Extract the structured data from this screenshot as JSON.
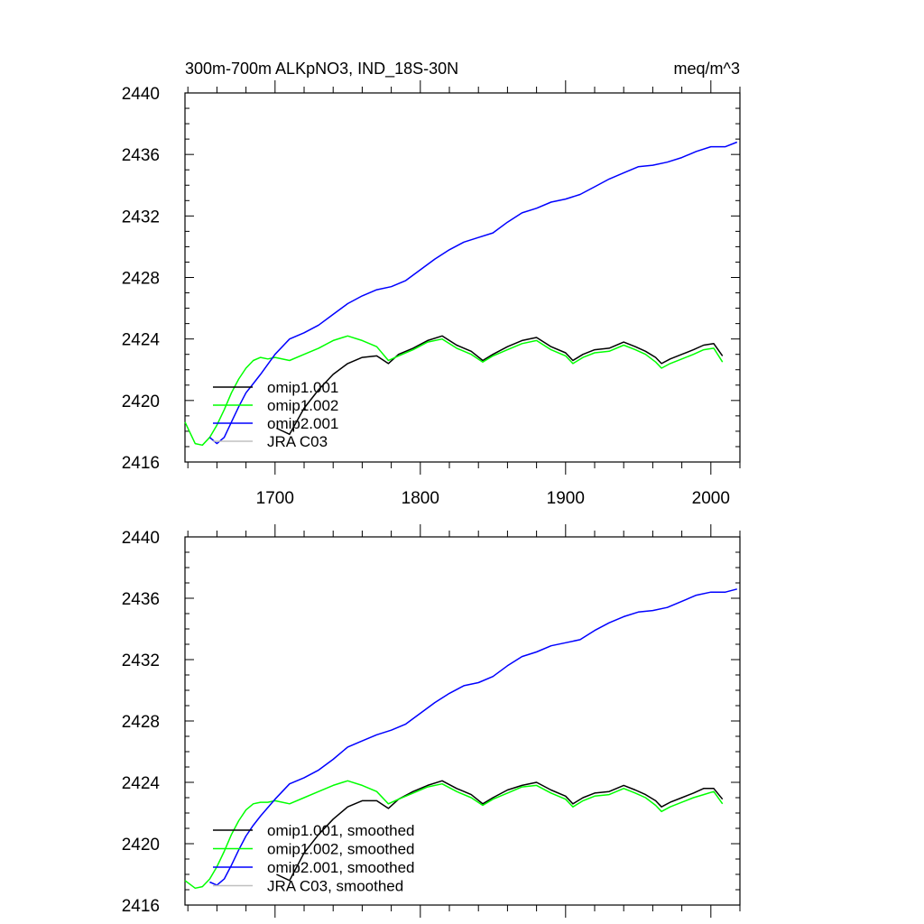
{
  "chart_data": [
    {
      "type": "line",
      "title": "300m-700m ALKpNO3, IND_18S-30N",
      "units": "meq/m^3",
      "ylim": [
        2416,
        2440
      ],
      "xlim": [
        1638,
        2020
      ],
      "yticks": [
        "2416",
        "2420",
        "2424",
        "2428",
        "2432",
        "2436",
        "2440"
      ],
      "xticks": [
        "1700",
        "1800",
        "1900",
        "2000"
      ],
      "legend_position": "bottom-left",
      "series": [
        {
          "name": "omip1.001",
          "color": "#000000",
          "x": [
            1701,
            1710,
            1720,
            1730,
            1740,
            1750,
            1760,
            1770,
            1778,
            1785,
            1795,
            1805,
            1815,
            1825,
            1835,
            1843,
            1850,
            1860,
            1870,
            1880,
            1890,
            1900,
            1905,
            1912,
            1920,
            1930,
            1940,
            1948,
            1955,
            1962,
            1966,
            1972,
            1980,
            1988,
            1995,
            2002,
            2008
          ],
          "y": [
            2418.2,
            2417.8,
            2419.5,
            2420.7,
            2421.7,
            2422.4,
            2422.8,
            2422.9,
            2422.4,
            2423.0,
            2423.4,
            2423.9,
            2424.2,
            2423.6,
            2423.2,
            2422.6,
            2423.0,
            2423.5,
            2423.9,
            2424.1,
            2423.5,
            2423.1,
            2422.6,
            2423.0,
            2423.3,
            2423.4,
            2423.8,
            2423.5,
            2423.2,
            2422.8,
            2422.4,
            2422.7,
            2423.0,
            2423.3,
            2423.6,
            2423.7,
            2422.9
          ]
        },
        {
          "name": "omip1.002",
          "color": "#00ff00",
          "x": [
            1638,
            1645,
            1650,
            1655,
            1660,
            1665,
            1670,
            1675,
            1680,
            1685,
            1690,
            1695,
            1700,
            1710,
            1720,
            1730,
            1740,
            1750,
            1760,
            1770,
            1778,
            1785,
            1795,
            1805,
            1815,
            1825,
            1835,
            1843,
            1850,
            1860,
            1870,
            1880,
            1890,
            1900,
            1905,
            1912,
            1920,
            1930,
            1940,
            1948,
            1955,
            1962,
            1966,
            1972,
            1980,
            1988,
            1995,
            2002,
            2008
          ],
          "y": [
            2418.6,
            2417.2,
            2417.1,
            2417.6,
            2418.4,
            2419.4,
            2420.5,
            2421.4,
            2422.1,
            2422.6,
            2422.8,
            2422.7,
            2422.8,
            2422.6,
            2423.0,
            2423.4,
            2423.9,
            2424.2,
            2423.9,
            2423.5,
            2422.6,
            2422.9,
            2423.3,
            2423.8,
            2424.0,
            2423.4,
            2423.0,
            2422.5,
            2422.9,
            2423.3,
            2423.7,
            2423.9,
            2423.3,
            2422.9,
            2422.4,
            2422.8,
            2423.1,
            2423.2,
            2423.6,
            2423.3,
            2423.0,
            2422.5,
            2422.1,
            2422.4,
            2422.7,
            2423.0,
            2423.3,
            2423.4,
            2422.5
          ]
        },
        {
          "name": "omip2.001",
          "color": "#0000ff",
          "x": [
            1655,
            1660,
            1665,
            1670,
            1675,
            1680,
            1685,
            1690,
            1700,
            1710,
            1720,
            1730,
            1740,
            1750,
            1760,
            1770,
            1780,
            1790,
            1800,
            1810,
            1820,
            1830,
            1840,
            1850,
            1860,
            1870,
            1880,
            1890,
            1900,
            1910,
            1920,
            1930,
            1940,
            1950,
            1960,
            1970,
            1980,
            1990,
            2000,
            2010,
            2018
          ],
          "y": [
            2417.6,
            2417.2,
            2417.6,
            2418.6,
            2419.6,
            2420.5,
            2421.1,
            2421.7,
            2423.0,
            2424.0,
            2424.4,
            2424.9,
            2425.6,
            2426.3,
            2426.8,
            2427.2,
            2427.4,
            2427.8,
            2428.5,
            2429.2,
            2429.8,
            2430.3,
            2430.6,
            2430.9,
            2431.6,
            2432.2,
            2432.5,
            2432.9,
            2433.1,
            2433.4,
            2433.9,
            2434.4,
            2434.8,
            2435.2,
            2435.3,
            2435.5,
            2435.8,
            2436.2,
            2436.5,
            2436.5,
            2436.8
          ]
        },
        {
          "name": "JRA C03",
          "color": "#c0c0c0",
          "x": [],
          "y": []
        }
      ]
    },
    {
      "type": "line",
      "title": "",
      "ylim": [
        2416,
        2440
      ],
      "xlim": [
        1638,
        2020
      ],
      "yticks": [
        "2416",
        "2420",
        "2424",
        "2428",
        "2432",
        "2436",
        "2440"
      ],
      "legend_position": "bottom-left",
      "series": [
        {
          "name": "omip1.001, smoothed",
          "color": "#000000",
          "x": [
            1701,
            1710,
            1720,
            1730,
            1740,
            1750,
            1760,
            1770,
            1778,
            1785,
            1795,
            1805,
            1815,
            1825,
            1835,
            1843,
            1850,
            1860,
            1870,
            1880,
            1890,
            1900,
            1905,
            1912,
            1920,
            1930,
            1940,
            1948,
            1955,
            1962,
            1966,
            1972,
            1980,
            1988,
            1995,
            2002,
            2008
          ],
          "y": [
            2418.0,
            2417.6,
            2419.4,
            2420.6,
            2421.6,
            2422.4,
            2422.8,
            2422.8,
            2422.3,
            2422.9,
            2423.4,
            2423.8,
            2424.1,
            2423.6,
            2423.2,
            2422.6,
            2423.0,
            2423.5,
            2423.8,
            2424.0,
            2423.5,
            2423.1,
            2422.6,
            2423.0,
            2423.3,
            2423.4,
            2423.8,
            2423.5,
            2423.2,
            2422.8,
            2422.4,
            2422.7,
            2423.0,
            2423.3,
            2423.6,
            2423.6,
            2422.9
          ]
        },
        {
          "name": "omip1.002, smoothed",
          "color": "#00ff00",
          "x": [
            1638,
            1645,
            1650,
            1655,
            1660,
            1665,
            1670,
            1675,
            1680,
            1685,
            1690,
            1695,
            1700,
            1710,
            1720,
            1730,
            1740,
            1750,
            1760,
            1770,
            1778,
            1785,
            1795,
            1805,
            1815,
            1825,
            1835,
            1843,
            1850,
            1860,
            1870,
            1880,
            1890,
            1900,
            1905,
            1912,
            1920,
            1930,
            1940,
            1948,
            1955,
            1962,
            1966,
            1972,
            1980,
            1988,
            1995,
            2002,
            2008
          ],
          "y": [
            2417.6,
            2417.1,
            2417.2,
            2417.7,
            2418.5,
            2419.5,
            2420.6,
            2421.5,
            2422.2,
            2422.6,
            2422.7,
            2422.7,
            2422.8,
            2422.6,
            2423.0,
            2423.4,
            2423.8,
            2424.1,
            2423.8,
            2423.4,
            2422.6,
            2422.9,
            2423.3,
            2423.7,
            2423.9,
            2423.4,
            2423.0,
            2422.5,
            2422.9,
            2423.3,
            2423.7,
            2423.8,
            2423.3,
            2422.9,
            2422.4,
            2422.8,
            2423.1,
            2423.2,
            2423.6,
            2423.3,
            2423.0,
            2422.5,
            2422.1,
            2422.4,
            2422.7,
            2423.0,
            2423.2,
            2423.4,
            2422.6
          ]
        },
        {
          "name": "omip2.001, smoothed",
          "color": "#0000ff",
          "x": [
            1655,
            1660,
            1665,
            1670,
            1675,
            1680,
            1685,
            1690,
            1700,
            1710,
            1720,
            1730,
            1740,
            1750,
            1760,
            1770,
            1780,
            1790,
            1800,
            1810,
            1820,
            1830,
            1840,
            1850,
            1860,
            1870,
            1880,
            1890,
            1900,
            1910,
            1920,
            1930,
            1940,
            1950,
            1960,
            1970,
            1980,
            1990,
            2000,
            2010,
            2018
          ],
          "y": [
            2417.5,
            2417.3,
            2417.7,
            2418.6,
            2419.6,
            2420.5,
            2421.2,
            2421.8,
            2422.9,
            2423.9,
            2424.3,
            2424.8,
            2425.5,
            2426.3,
            2426.7,
            2427.1,
            2427.4,
            2427.8,
            2428.5,
            2429.2,
            2429.8,
            2430.3,
            2430.5,
            2430.9,
            2431.6,
            2432.2,
            2432.5,
            2432.9,
            2433.1,
            2433.3,
            2433.9,
            2434.4,
            2434.8,
            2435.1,
            2435.2,
            2435.4,
            2435.8,
            2436.2,
            2436.4,
            2436.4,
            2436.6
          ]
        },
        {
          "name": "JRA C03, smoothed",
          "color": "#c0c0c0",
          "x": [],
          "y": []
        }
      ]
    }
  ]
}
